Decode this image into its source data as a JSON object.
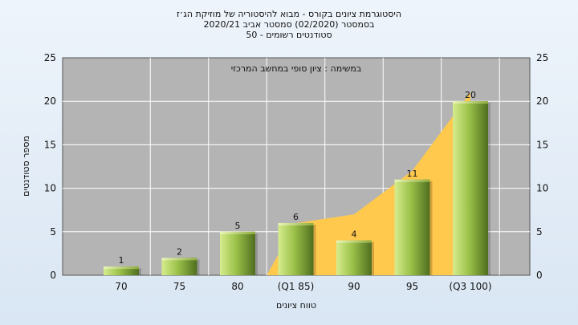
{
  "chart_data": {
    "type": "bar",
    "title_lines": [
      "היסטוגרמת ציונים בקורס - מבוא להיסטוריה של מוזיקת הג׳ז",
      "בסמסטר  (02/2020)  סמסטר אביב 2020/21",
      "סטודנטים רשומים - 50"
    ],
    "annotation": "במשימה : ציון סופי במחשב המרכזי",
    "categories": [
      "70",
      "75",
      "80",
      "(Q1 85)",
      "90",
      "95",
      "(Q3 100)"
    ],
    "values": [
      1,
      2,
      5,
      6,
      4,
      11,
      20
    ],
    "area_values": [
      0,
      0,
      0,
      6,
      7,
      12,
      21
    ],
    "xlabel": "טווח ציונים",
    "ylabel": "מספר סטודנטים",
    "ylim": [
      0,
      25
    ],
    "yticks": [
      0,
      5,
      10,
      15,
      20,
      25
    ],
    "grid": true,
    "colors": {
      "plot_bg": "#b4b4b4",
      "grid": "#ffffff",
      "area": "#ffc94d",
      "bar_light": "#d6ec8e",
      "bar_mid": "#9cc24a",
      "bar_dark": "#4f6e1f"
    }
  }
}
